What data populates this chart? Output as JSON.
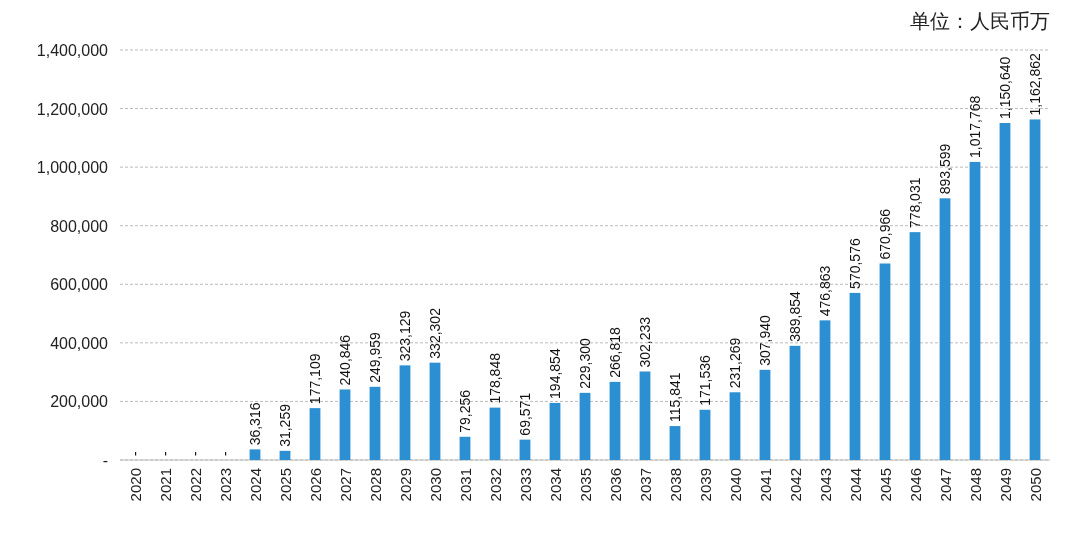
{
  "chart_data": {
    "type": "bar",
    "categories": [
      "2020",
      "2021",
      "2022",
      "2023",
      "2024",
      "2025",
      "2026",
      "2027",
      "2028",
      "2029",
      "2030",
      "2031",
      "2032",
      "2033",
      "2034",
      "2035",
      "2036",
      "2037",
      "2038",
      "2039",
      "2040",
      "2041",
      "2042",
      "2043",
      "2044",
      "2045",
      "2046",
      "2047",
      "2048",
      "2049",
      "2050"
    ],
    "values": [
      0,
      0,
      0,
      0,
      36316,
      31259,
      177109,
      240846,
      249959,
      323129,
      332302,
      79256,
      178848,
      69571,
      194854,
      229300,
      266818,
      302233,
      115841,
      171536,
      231269,
      307940,
      389854,
      476863,
      570576,
      670966,
      778031,
      893599,
      1017768,
      1150640,
      1162862
    ],
    "value_labels": [
      "-",
      "-",
      "-",
      "-",
      "36,316",
      "31,259",
      "177,109",
      "240,846",
      "249,959",
      "323,129",
      "332,302",
      "79,256",
      "178,848",
      "69,571",
      "194,854",
      "229,300",
      "266,818",
      "302,233",
      "115,841",
      "171,536",
      "231,269",
      "307,940",
      "389,854",
      "476,863",
      "570,576",
      "670,966",
      "778,031",
      "893,599",
      "1,017,768",
      "1,150,640",
      "1,162,862"
    ],
    "color": "#2b8fd1",
    "ylim": [
      0,
      1400000
    ],
    "yticks": [
      {
        "value": 0,
        "label": "-"
      },
      {
        "value": 200000,
        "label": "200,000"
      },
      {
        "value": 400000,
        "label": "400,000"
      },
      {
        "value": 600000,
        "label": "600,000"
      },
      {
        "value": 800000,
        "label": "800,000"
      },
      {
        "value": 1000000,
        "label": "1,000,000"
      },
      {
        "value": 1200000,
        "label": "1,200,000"
      },
      {
        "value": 1400000,
        "label": "1,400,000"
      }
    ],
    "grid": "y",
    "annotations": [
      "单位：人民币万"
    ]
  }
}
